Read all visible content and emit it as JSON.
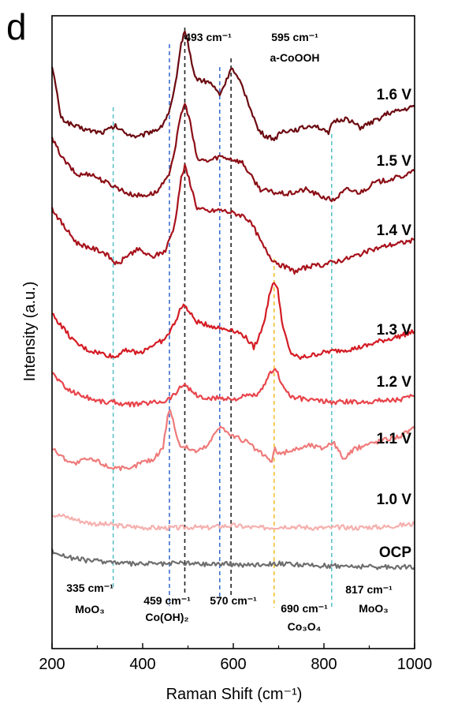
{
  "chart_data": {
    "type": "line",
    "panel_label": "d",
    "xlabel": "Raman Shift (cm⁻¹)",
    "ylabel": "Intensity (a.u.)",
    "xlim": [
      200,
      1000
    ],
    "xticks": [
      200,
      400,
      600,
      800,
      1000
    ],
    "y_ticks_shown": false,
    "grid": false,
    "series": [
      {
        "name": "1.6 V",
        "color": "#6b0a10",
        "points": [
          [
            200,
            98
          ],
          [
            220,
            30
          ],
          [
            250,
            20
          ],
          [
            280,
            15
          ],
          [
            310,
            12
          ],
          [
            340,
            20
          ],
          [
            360,
            12
          ],
          [
            390,
            6
          ],
          [
            420,
            14
          ],
          [
            440,
            18
          ],
          [
            460,
            40
          ],
          [
            475,
            80
          ],
          [
            485,
            125
          ],
          [
            493,
            142
          ],
          [
            502,
            120
          ],
          [
            515,
            82
          ],
          [
            530,
            78
          ],
          [
            550,
            75
          ],
          [
            570,
            60
          ],
          [
            585,
            78
          ],
          [
            595,
            95
          ],
          [
            605,
            85
          ],
          [
            620,
            70
          ],
          [
            640,
            40
          ],
          [
            655,
            15
          ],
          [
            670,
            8
          ],
          [
            690,
            4
          ],
          [
            710,
            14
          ],
          [
            740,
            16
          ],
          [
            780,
            22
          ],
          [
            810,
            10
          ],
          [
            820,
            26
          ],
          [
            850,
            30
          ],
          [
            880,
            18
          ],
          [
            910,
            26
          ],
          [
            940,
            36
          ],
          [
            970,
            40
          ],
          [
            1000,
            45
          ]
        ]
      },
      {
        "name": "1.5 V",
        "color": "#8b0e16",
        "points": [
          [
            200,
            86
          ],
          [
            225,
            60
          ],
          [
            255,
            40
          ],
          [
            285,
            42
          ],
          [
            315,
            32
          ],
          [
            345,
            24
          ],
          [
            370,
            16
          ],
          [
            400,
            14
          ],
          [
            430,
            18
          ],
          [
            455,
            36
          ],
          [
            470,
            70
          ],
          [
            485,
            118
          ],
          [
            493,
            130
          ],
          [
            502,
            115
          ],
          [
            520,
            60
          ],
          [
            545,
            58
          ],
          [
            570,
            64
          ],
          [
            600,
            60
          ],
          [
            620,
            56
          ],
          [
            640,
            38
          ],
          [
            660,
            22
          ],
          [
            690,
            18
          ],
          [
            720,
            16
          ],
          [
            760,
            22
          ],
          [
            790,
            14
          ],
          [
            820,
            8
          ],
          [
            850,
            22
          ],
          [
            880,
            18
          ],
          [
            910,
            30
          ],
          [
            940,
            34
          ],
          [
            970,
            38
          ],
          [
            1000,
            45
          ]
        ]
      },
      {
        "name": "1.4 V",
        "color": "#a8121c",
        "points": [
          [
            200,
            92
          ],
          [
            225,
            70
          ],
          [
            255,
            48
          ],
          [
            285,
            42
          ],
          [
            315,
            36
          ],
          [
            345,
            20
          ],
          [
            365,
            32
          ],
          [
            390,
            40
          ],
          [
            420,
            30
          ],
          [
            450,
            38
          ],
          [
            470,
            70
          ],
          [
            485,
            130
          ],
          [
            493,
            145
          ],
          [
            502,
            130
          ],
          [
            520,
            92
          ],
          [
            545,
            88
          ],
          [
            570,
            90
          ],
          [
            600,
            86
          ],
          [
            625,
            82
          ],
          [
            645,
            68
          ],
          [
            665,
            45
          ],
          [
            685,
            28
          ],
          [
            705,
            20
          ],
          [
            735,
            12
          ],
          [
            765,
            18
          ],
          [
            795,
            20
          ],
          [
            820,
            24
          ],
          [
            850,
            28
          ],
          [
            880,
            34
          ],
          [
            910,
            40
          ],
          [
            940,
            45
          ],
          [
            970,
            48
          ],
          [
            1000,
            52
          ]
        ]
      },
      {
        "name": "1.3 V",
        "color": "#d41c24",
        "points": [
          [
            200,
            70
          ],
          [
            225,
            52
          ],
          [
            250,
            34
          ],
          [
            280,
            24
          ],
          [
            310,
            20
          ],
          [
            340,
            15
          ],
          [
            360,
            26
          ],
          [
            390,
            20
          ],
          [
            420,
            30
          ],
          [
            450,
            38
          ],
          [
            470,
            58
          ],
          [
            485,
            78
          ],
          [
            493,
            82
          ],
          [
            502,
            72
          ],
          [
            520,
            60
          ],
          [
            545,
            56
          ],
          [
            570,
            52
          ],
          [
            600,
            50
          ],
          [
            625,
            42
          ],
          [
            645,
            28
          ],
          [
            655,
            38
          ],
          [
            670,
            66
          ],
          [
            682,
            100
          ],
          [
            690,
            112
          ],
          [
            698,
            100
          ],
          [
            710,
            52
          ],
          [
            725,
            22
          ],
          [
            745,
            14
          ],
          [
            775,
            18
          ],
          [
            805,
            22
          ],
          [
            835,
            24
          ],
          [
            865,
            26
          ],
          [
            895,
            30
          ],
          [
            925,
            36
          ],
          [
            955,
            40
          ],
          [
            1000,
            48
          ]
        ]
      },
      {
        "name": "1.2 V",
        "color": "#e8434a",
        "points": [
          [
            200,
            50
          ],
          [
            230,
            30
          ],
          [
            260,
            22
          ],
          [
            290,
            16
          ],
          [
            320,
            12
          ],
          [
            340,
            13
          ],
          [
            360,
            9
          ],
          [
            390,
            10
          ],
          [
            420,
            12
          ],
          [
            450,
            14
          ],
          [
            470,
            22
          ],
          [
            485,
            32
          ],
          [
            493,
            36
          ],
          [
            502,
            30
          ],
          [
            520,
            20
          ],
          [
            545,
            16
          ],
          [
            570,
            18
          ],
          [
            600,
            16
          ],
          [
            630,
            20
          ],
          [
            655,
            22
          ],
          [
            670,
            34
          ],
          [
            682,
            50
          ],
          [
            690,
            55
          ],
          [
            698,
            48
          ],
          [
            712,
            30
          ],
          [
            730,
            18
          ],
          [
            760,
            16
          ],
          [
            790,
            14
          ],
          [
            820,
            12
          ],
          [
            850,
            13
          ],
          [
            880,
            12
          ],
          [
            910,
            14
          ],
          [
            940,
            15
          ],
          [
            970,
            16
          ],
          [
            1000,
            20
          ]
        ]
      },
      {
        "name": "1.1 V",
        "color": "#ef7a7a",
        "points": [
          [
            200,
            40
          ],
          [
            225,
            28
          ],
          [
            250,
            20
          ],
          [
            275,
            26
          ],
          [
            300,
            24
          ],
          [
            325,
            16
          ],
          [
            345,
            16
          ],
          [
            370,
            12
          ],
          [
            395,
            22
          ],
          [
            425,
            26
          ],
          [
            445,
            42
          ],
          [
            455,
            80
          ],
          [
            461,
            90
          ],
          [
            470,
            68
          ],
          [
            480,
            45
          ],
          [
            500,
            40
          ],
          [
            520,
            36
          ],
          [
            545,
            44
          ],
          [
            560,
            60
          ],
          [
            572,
            70
          ],
          [
            585,
            60
          ],
          [
            605,
            54
          ],
          [
            630,
            48
          ],
          [
            650,
            38
          ],
          [
            670,
            30
          ],
          [
            685,
            22
          ],
          [
            692,
            40
          ],
          [
            702,
            32
          ],
          [
            720,
            36
          ],
          [
            745,
            40
          ],
          [
            770,
            44
          ],
          [
            795,
            40
          ],
          [
            820,
            48
          ],
          [
            838,
            32
          ],
          [
            845,
            26
          ],
          [
            865,
            38
          ],
          [
            890,
            44
          ],
          [
            915,
            48
          ],
          [
            940,
            52
          ],
          [
            970,
            56
          ],
          [
            1000,
            66
          ]
        ]
      },
      {
        "name": "1.0 V",
        "color": "#f5b0ae",
        "points": [
          [
            200,
            20
          ],
          [
            225,
            18
          ],
          [
            250,
            14
          ],
          [
            275,
            10
          ],
          [
            300,
            8
          ],
          [
            330,
            7
          ],
          [
            360,
            5
          ],
          [
            390,
            4
          ],
          [
            420,
            3
          ],
          [
            450,
            3
          ],
          [
            480,
            3
          ],
          [
            510,
            4
          ],
          [
            540,
            3
          ],
          [
            570,
            5
          ],
          [
            600,
            6
          ],
          [
            630,
            4
          ],
          [
            660,
            3
          ],
          [
            690,
            4
          ],
          [
            720,
            5
          ],
          [
            750,
            4
          ],
          [
            780,
            3
          ],
          [
            810,
            3
          ],
          [
            840,
            4
          ],
          [
            870,
            3
          ],
          [
            900,
            4
          ],
          [
            930,
            4
          ],
          [
            960,
            6
          ],
          [
            1000,
            8
          ]
        ]
      },
      {
        "name": "OCP",
        "color": "#6e6e6e",
        "points": [
          [
            200,
            22
          ],
          [
            225,
            16
          ],
          [
            250,
            12
          ],
          [
            275,
            10
          ],
          [
            300,
            9
          ],
          [
            330,
            8
          ],
          [
            360,
            6
          ],
          [
            390,
            5
          ],
          [
            420,
            6
          ],
          [
            450,
            5
          ],
          [
            480,
            7
          ],
          [
            510,
            6
          ],
          [
            540,
            5
          ],
          [
            570,
            6
          ],
          [
            600,
            5
          ],
          [
            630,
            4
          ],
          [
            660,
            5
          ],
          [
            690,
            6
          ],
          [
            720,
            5
          ],
          [
            750,
            4
          ],
          [
            780,
            3
          ],
          [
            810,
            3
          ],
          [
            840,
            3
          ],
          [
            870,
            2
          ],
          [
            900,
            2
          ],
          [
            930,
            1
          ],
          [
            960,
            2
          ],
          [
            1000,
            1
          ]
        ]
      }
    ],
    "reference_lines": [
      {
        "x": 335,
        "color": "#5cc2c9",
        "label": "335 cm⁻¹",
        "sub": "MoO₃"
      },
      {
        "x": 459,
        "color": "#3a6fd0",
        "label": "459 cm⁻¹",
        "sub": "Co(OH)₂"
      },
      {
        "x": 493,
        "color": "#222222",
        "label": "493 cm⁻¹",
        "sub": ""
      },
      {
        "x": 570,
        "color": "#3a6fd0",
        "label": "570 cm⁻¹",
        "sub": ""
      },
      {
        "x": 595,
        "color": "#222222",
        "label": "595 cm⁻¹",
        "sub": "a-CoOOH"
      },
      {
        "x": 690,
        "color": "#f0c030",
        "label": "690 cm⁻¹",
        "sub": "Co₃O₄"
      },
      {
        "x": 817,
        "color": "#5cc2c9",
        "label": "817 cm⁻¹",
        "sub": "MoO₃"
      }
    ]
  }
}
